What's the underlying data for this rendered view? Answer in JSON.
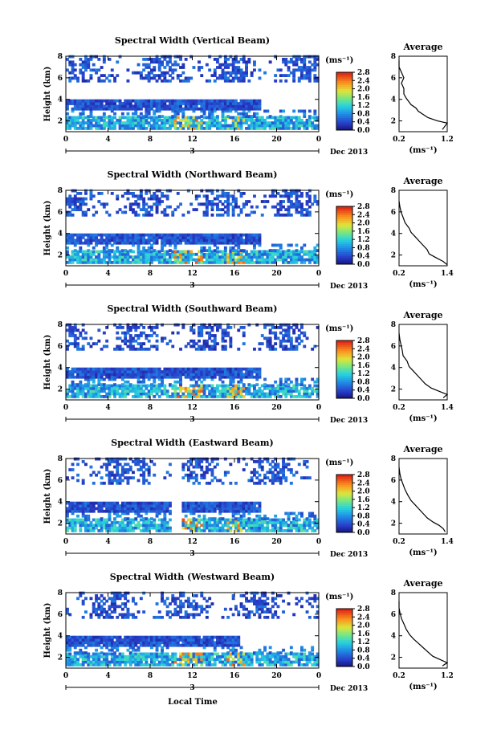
{
  "figure": {
    "xlabel": "Local Time",
    "date_label": "Dec 2013",
    "day_label": "3",
    "unit_label": "(ms⁻¹)",
    "avg_title": "Average"
  },
  "chart_data": [
    {
      "type": "heatmap",
      "title": "Spectral Width (Vertical Beam)",
      "ylabel": "Height (km)",
      "xlabel": "Local Time",
      "x_ticks": [
        "0",
        "4",
        "8",
        "12",
        "16",
        "20",
        "0"
      ],
      "xlim": [
        0,
        24
      ],
      "y_ticks": [
        "2",
        "4",
        "6",
        "8"
      ],
      "ylim": [
        1,
        8
      ],
      "colorbar": {
        "label": "(ms⁻¹)",
        "ticks": [
          "0.0",
          "0.4",
          "0.8",
          "1.2",
          "1.6",
          "2.0",
          "2.4",
          "2.8"
        ],
        "range": [
          0.0,
          2.8
        ]
      },
      "average_profile": {
        "title": "Average",
        "xlabel": "(ms⁻¹)",
        "x_ticks": [
          "0.2",
          "1.2"
        ],
        "xlim": [
          0.2,
          1.2
        ],
        "y_ticks": [
          "2",
          "4",
          "6",
          "8"
        ],
        "ylim": [
          1,
          8
        ],
        "points": [
          [
            1.1,
            1.2
          ],
          [
            1.15,
            1.5
          ],
          [
            1.2,
            1.8
          ],
          [
            1.0,
            2.0
          ],
          [
            0.8,
            2.3
          ],
          [
            0.7,
            2.6
          ],
          [
            0.6,
            2.9
          ],
          [
            0.55,
            3.2
          ],
          [
            0.45,
            3.5
          ],
          [
            0.4,
            3.8
          ],
          [
            0.35,
            4.1
          ],
          [
            0.3,
            4.5
          ],
          [
            0.3,
            5.0
          ],
          [
            0.25,
            5.5
          ],
          [
            0.3,
            6.0
          ],
          [
            0.25,
            6.5
          ],
          [
            0.2,
            7.0
          ],
          [
            0.2,
            7.6
          ]
        ]
      }
    },
    {
      "type": "heatmap",
      "title": "Spectral Width (Northward Beam)",
      "ylabel": "Height (km)",
      "xlabel": "Local Time",
      "x_ticks": [
        "0",
        "4",
        "8",
        "12",
        "16",
        "20",
        "0"
      ],
      "xlim": [
        0,
        24
      ],
      "y_ticks": [
        "2",
        "4",
        "6",
        "8"
      ],
      "ylim": [
        1,
        8
      ],
      "colorbar": {
        "label": "(ms⁻¹)",
        "ticks": [
          "0.0",
          "0.4",
          "0.8",
          "1.2",
          "1.6",
          "2.0",
          "2.4",
          "2.8"
        ],
        "range": [
          0.0,
          2.8
        ]
      },
      "average_profile": {
        "title": "Average",
        "xlabel": "(ms⁻¹)",
        "x_ticks": [
          "0.2",
          "1.4"
        ],
        "xlim": [
          0.2,
          1.4
        ],
        "y_ticks": [
          "2",
          "4",
          "6",
          "8"
        ],
        "ylim": [
          1,
          8
        ],
        "points": [
          [
            1.4,
            1.1
          ],
          [
            1.3,
            1.4
          ],
          [
            1.1,
            1.8
          ],
          [
            0.95,
            2.1
          ],
          [
            0.9,
            2.5
          ],
          [
            0.8,
            2.9
          ],
          [
            0.7,
            3.3
          ],
          [
            0.6,
            3.7
          ],
          [
            0.5,
            4.1
          ],
          [
            0.45,
            4.5
          ],
          [
            0.35,
            5.0
          ],
          [
            0.3,
            5.5
          ],
          [
            0.25,
            6.0
          ],
          [
            0.22,
            6.5
          ],
          [
            0.2,
            7.0
          ]
        ]
      }
    },
    {
      "type": "heatmap",
      "title": "Spectral Width (Southward Beam)",
      "ylabel": "Height (km)",
      "xlabel": "Local Time",
      "x_ticks": [
        "0",
        "4",
        "8",
        "12",
        "16",
        "20",
        "0"
      ],
      "xlim": [
        0,
        24
      ],
      "y_ticks": [
        "2",
        "4",
        "6",
        "8"
      ],
      "ylim": [
        1,
        8
      ],
      "colorbar": {
        "label": "(ms⁻¹)",
        "ticks": [
          "0.0",
          "0.4",
          "0.8",
          "1.2",
          "1.6",
          "2.0",
          "2.4",
          "2.8"
        ],
        "range": [
          0.0,
          2.8
        ]
      },
      "average_profile": {
        "title": "Average",
        "xlabel": "(ms⁻¹)",
        "x_ticks": [
          "0.2",
          "1.4"
        ],
        "xlim": [
          0.2,
          1.4
        ],
        "y_ticks": [
          "2",
          "4",
          "6",
          "8"
        ],
        "ylim": [
          1,
          8
        ],
        "points": [
          [
            1.3,
            1.2
          ],
          [
            1.4,
            1.5
          ],
          [
            1.2,
            1.8
          ],
          [
            1.0,
            2.1
          ],
          [
            0.85,
            2.5
          ],
          [
            0.75,
            2.9
          ],
          [
            0.65,
            3.3
          ],
          [
            0.55,
            3.7
          ],
          [
            0.45,
            4.1
          ],
          [
            0.4,
            4.6
          ],
          [
            0.3,
            5.1
          ],
          [
            0.28,
            5.6
          ],
          [
            0.25,
            6.1
          ],
          [
            0.22,
            6.6
          ],
          [
            0.2,
            7.2
          ]
        ]
      }
    },
    {
      "type": "heatmap",
      "title": "Spectral Width (Eastward Beam)",
      "ylabel": "Height (km)",
      "xlabel": "Local Time",
      "x_ticks": [
        "0",
        "4",
        "8",
        "12",
        "16",
        "20",
        "0"
      ],
      "xlim": [
        0,
        24
      ],
      "y_ticks": [
        "2",
        "4",
        "6",
        "8"
      ],
      "ylim": [
        1,
        8
      ],
      "colorbar": {
        "label": "(ms⁻¹)",
        "ticks": [
          "0.0",
          "0.4",
          "0.8",
          "1.2",
          "1.6",
          "2.0",
          "2.4",
          "2.8"
        ],
        "range": [
          0.0,
          2.8
        ]
      },
      "average_profile": {
        "title": "Average",
        "xlabel": "(ms⁻¹)",
        "x_ticks": [
          "0.2",
          "1.4"
        ],
        "xlim": [
          0.2,
          1.4
        ],
        "y_ticks": [
          "2",
          "4",
          "6",
          "8"
        ],
        "ylim": [
          1,
          8
        ],
        "points": [
          [
            1.35,
            1.2
          ],
          [
            1.3,
            1.5
          ],
          [
            1.2,
            1.8
          ],
          [
            1.05,
            2.1
          ],
          [
            0.9,
            2.5
          ],
          [
            0.8,
            2.9
          ],
          [
            0.7,
            3.3
          ],
          [
            0.6,
            3.7
          ],
          [
            0.5,
            4.1
          ],
          [
            0.42,
            4.6
          ],
          [
            0.35,
            5.1
          ],
          [
            0.3,
            5.6
          ],
          [
            0.25,
            6.1
          ],
          [
            0.22,
            6.6
          ],
          [
            0.2,
            7.2
          ]
        ]
      }
    },
    {
      "type": "heatmap",
      "title": "Spectral Width (Westward Beam)",
      "ylabel": "Height (km)",
      "xlabel": "Local Time",
      "x_ticks": [
        "0",
        "4",
        "8",
        "12",
        "16",
        "20",
        "0"
      ],
      "xlim": [
        0,
        24
      ],
      "y_ticks": [
        "2",
        "4",
        "6",
        "8"
      ],
      "ylim": [
        1,
        8
      ],
      "colorbar": {
        "label": "(ms⁻¹)",
        "ticks": [
          "0.0",
          "0.4",
          "0.8",
          "1.2",
          "1.6",
          "2.0",
          "2.4",
          "2.8"
        ],
        "range": [
          0.0,
          2.8
        ]
      },
      "average_profile": {
        "title": "Average",
        "xlabel": "(ms⁻¹)",
        "x_ticks": [
          "0.2",
          "1.2"
        ],
        "xlim": [
          0.2,
          1.2
        ],
        "y_ticks": [
          "2",
          "4",
          "6",
          "8"
        ],
        "ylim": [
          1,
          8
        ],
        "points": [
          [
            1.1,
            1.2
          ],
          [
            1.2,
            1.5
          ],
          [
            1.05,
            1.8
          ],
          [
            0.9,
            2.1
          ],
          [
            0.8,
            2.5
          ],
          [
            0.7,
            2.9
          ],
          [
            0.6,
            3.3
          ],
          [
            0.5,
            3.7
          ],
          [
            0.42,
            4.1
          ],
          [
            0.35,
            4.6
          ],
          [
            0.3,
            5.1
          ],
          [
            0.25,
            5.6
          ],
          [
            0.22,
            6.1
          ],
          [
            0.2,
            6.6
          ],
          [
            0.2,
            7.2
          ]
        ]
      }
    }
  ]
}
